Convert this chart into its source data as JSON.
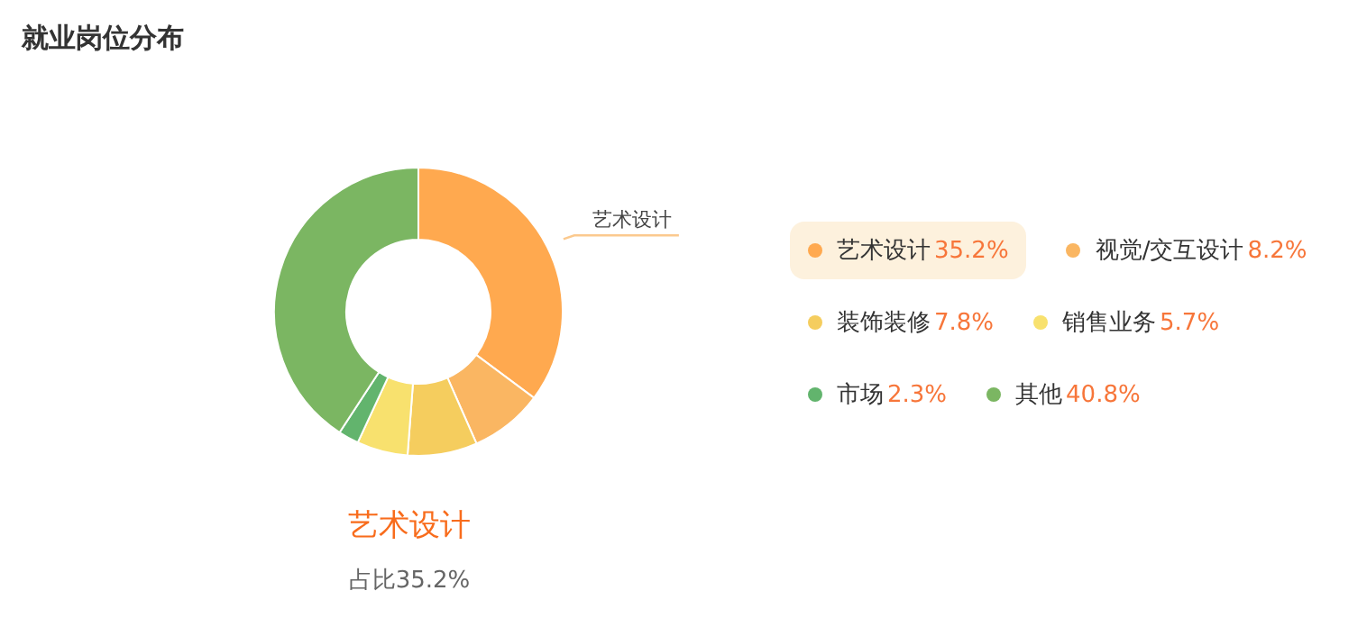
{
  "chart_data": {
    "type": "donut",
    "title": "就业岗位分布",
    "categories": [
      "艺术设计",
      "视觉/交互设计",
      "装饰装修",
      "销售业务",
      "市场",
      "其他"
    ],
    "values": [
      35.2,
      8.2,
      7.8,
      5.7,
      2.3,
      40.8
    ],
    "value_labels": [
      "35.2%",
      "8.2%",
      "7.8%",
      "5.7%",
      "2.3%",
      "40.8%"
    ],
    "colors": [
      "#ffa94f",
      "#fab662",
      "#f5cd5e",
      "#f8e16e",
      "#62b46d",
      "#7bb662"
    ],
    "annotations": [
      "占比35.2%"
    ],
    "legend": "right"
  }
}
